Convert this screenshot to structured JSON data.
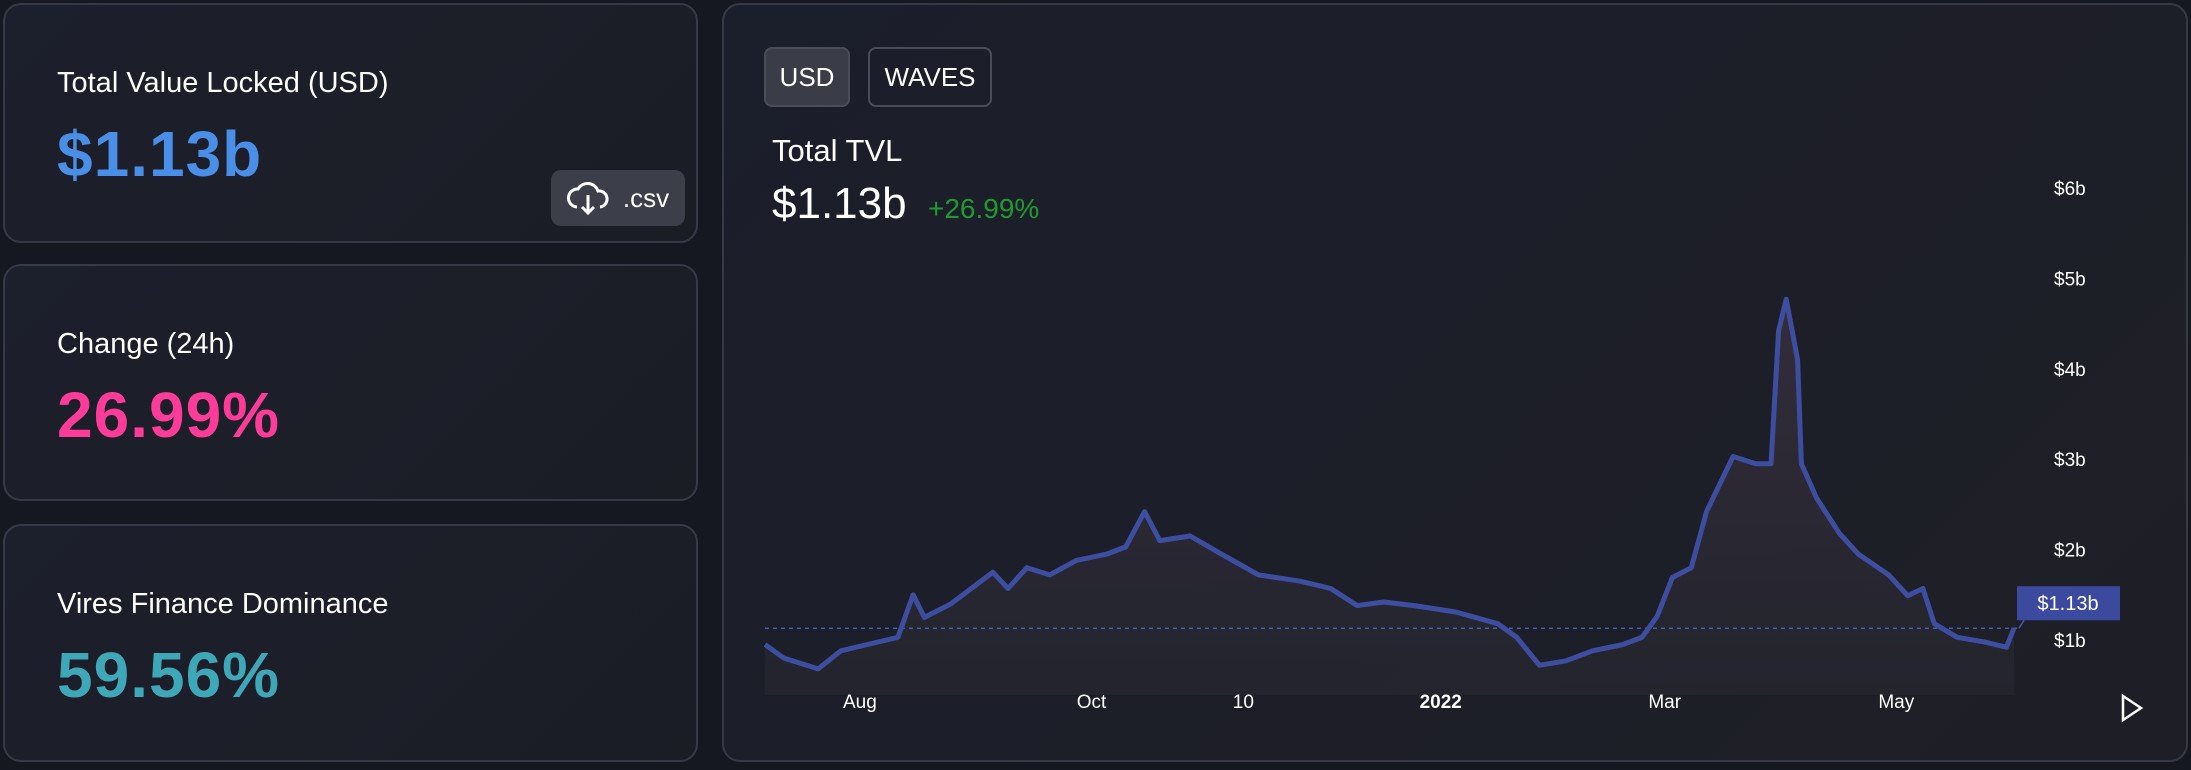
{
  "cards": [
    {
      "label": "Total Value Locked (USD)",
      "value": "$1.13b",
      "color": "#4a8fe7"
    },
    {
      "label": "Change (24h)",
      "value": "26.99%",
      "color": "#fd3c99"
    },
    {
      "label": "Vires Finance Dominance",
      "value": "59.56%",
      "color": "#3ea8b8"
    }
  ],
  "csv_button": {
    "label": ".csv",
    "icon": "cloud-download-icon"
  },
  "toggles": {
    "usd": "USD",
    "waves": "WAVES",
    "selected": "USD"
  },
  "header": {
    "title": "Total TVL",
    "value": "$1.13b",
    "change": "+26.99%"
  },
  "chart_data": {
    "type": "area",
    "ylim": [
      0.6,
      6.3
    ],
    "y_ticks": [
      "$1b",
      "$2b",
      "$3b",
      "$4b",
      "$5b",
      "$6b"
    ],
    "y_tick_values": [
      1,
      2,
      3,
      4,
      5,
      6
    ],
    "x_ticks": [
      {
        "label": "Aug",
        "date": "2021-08-01"
      },
      {
        "label": "Oct",
        "date": "2021-10-01"
      },
      {
        "label": "10",
        "date": "2021-11-10"
      },
      {
        "label": "2022",
        "date": "2022-01-01"
      },
      {
        "label": "Mar",
        "date": "2022-03-01"
      },
      {
        "label": "May",
        "date": "2022-05-01"
      }
    ],
    "current_label": "$1.13b",
    "current_value": 1.13,
    "line_color": "#3d4ea0",
    "x": [
      "2021-07-07",
      "2021-07-12",
      "2021-07-21",
      "2021-07-27",
      "2021-08-03",
      "2021-08-11",
      "2021-08-15",
      "2021-08-18",
      "2021-08-25",
      "2021-09-05",
      "2021-09-09",
      "2021-09-14",
      "2021-09-20",
      "2021-09-27",
      "2021-10-05",
      "2021-10-10",
      "2021-10-15",
      "2021-10-19",
      "2021-10-27",
      "2021-11-03",
      "2021-11-14",
      "2021-11-25",
      "2021-12-03",
      "2021-12-10",
      "2021-12-17",
      "2021-12-25",
      "2022-01-05",
      "2022-01-16",
      "2022-01-21",
      "2022-01-27",
      "2022-02-03",
      "2022-02-10",
      "2022-02-18",
      "2022-02-23",
      "2022-02-27",
      "2022-03-03",
      "2022-03-08",
      "2022-03-12",
      "2022-03-19",
      "2022-03-25",
      "2022-03-29",
      "2022-03-31",
      "2022-04-02",
      "2022-04-05",
      "2022-04-06",
      "2022-04-10",
      "2022-04-16",
      "2022-04-21",
      "2022-04-29",
      "2022-05-04",
      "2022-05-08",
      "2022-05-11",
      "2022-05-17",
      "2022-05-24",
      "2022-05-30",
      "2022-06-01"
    ],
    "values": [
      0.95,
      0.8,
      0.68,
      0.88,
      0.95,
      1.03,
      1.5,
      1.25,
      1.4,
      1.75,
      1.57,
      1.8,
      1.72,
      1.88,
      1.95,
      2.03,
      2.42,
      2.1,
      2.15,
      1.98,
      1.72,
      1.65,
      1.57,
      1.38,
      1.42,
      1.38,
      1.31,
      1.18,
      1.03,
      0.72,
      0.77,
      0.88,
      0.95,
      1.03,
      1.26,
      1.69,
      1.8,
      2.42,
      3.03,
      2.95,
      2.95,
      4.42,
      4.77,
      4.1,
      2.95,
      2.57,
      2.18,
      1.95,
      1.72,
      1.49,
      1.57,
      1.18,
      1.03,
      0.98,
      0.92,
      1.13
    ]
  }
}
